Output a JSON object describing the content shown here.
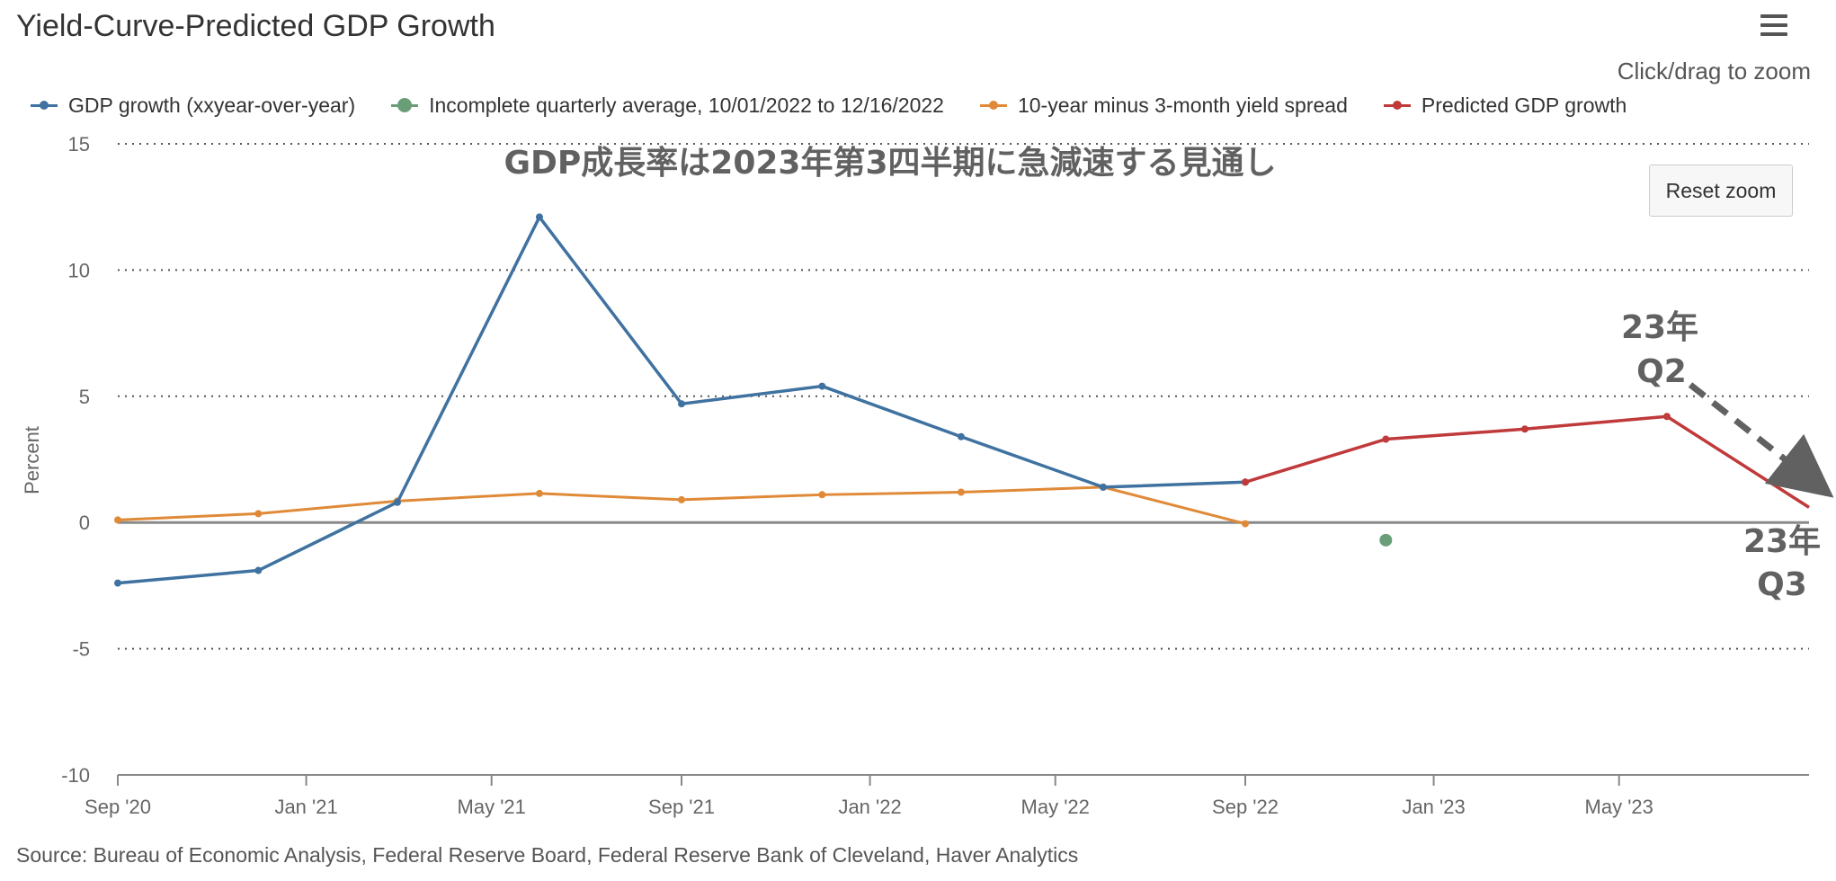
{
  "header": {
    "title": "Yield-Curve-Predicted GDP Growth",
    "menu_icon": "hamburger-menu-icon",
    "zoom_hint": "Click/drag to zoom",
    "reset_zoom_label": "Reset zoom"
  },
  "footer": {
    "source": "Source: Bureau of Economic Analysis, Federal Reserve Board, Federal Reserve Bank of Cleveland, Haver Analytics"
  },
  "annotations": {
    "headline": "GDP成長率は2023年第3四半期に急減速する見通し",
    "q2_line1": "23年",
    "q2_line2": "Q2",
    "q3_line1": "23年",
    "q3_line2": "Q3"
  },
  "colors": {
    "gdp": "#3f72a0",
    "incomplete": "#6a9e78",
    "spread": "#e08a38",
    "predicted": "#c0393b",
    "grid": "#555555",
    "annotation": "#616161"
  },
  "chart_data": {
    "type": "line",
    "title": "Yield-Curve-Predicted GDP Growth",
    "xlabel": "",
    "ylabel": "Percent",
    "ylim": [
      -10,
      15
    ],
    "yticks": [
      -10,
      -5,
      0,
      5,
      10,
      15
    ],
    "x_range": [
      "2020-09-01",
      "2023-09-01"
    ],
    "xtick_labels": [
      "Sep '20",
      "Jan '21",
      "May '21",
      "Sep '21",
      "Jan '22",
      "May '22",
      "Sep '22",
      "Jan '23",
      "May '23"
    ],
    "xtick_dates": [
      "2020-09-01",
      "2021-01-01",
      "2021-05-01",
      "2021-09-01",
      "2022-01-01",
      "2022-05-01",
      "2022-09-01",
      "2023-01-01",
      "2023-05-01"
    ],
    "grid": "dotted horizontal",
    "legend_position": "top-left",
    "series": [
      {
        "name": "GDP growth (xxyear-over-year)",
        "color": "#3f72a0",
        "points": [
          {
            "x": "2020-09-01",
            "y": -2.4
          },
          {
            "x": "2020-12-01",
            "y": -1.9
          },
          {
            "x": "2021-03-01",
            "y": 0.8
          },
          {
            "x": "2021-06-01",
            "y": 12.1
          },
          {
            "x": "2021-09-01",
            "y": 4.7
          },
          {
            "x": "2021-12-01",
            "y": 5.4
          },
          {
            "x": "2022-03-01",
            "y": 3.4
          },
          {
            "x": "2022-06-01",
            "y": 1.4
          },
          {
            "x": "2022-09-01",
            "y": 1.6
          }
        ]
      },
      {
        "name": "Incomplete quarterly average, 10/01/2022 to 12/16/2022",
        "color": "#6a9e78",
        "points": [
          {
            "x": "2022-12-01",
            "y": -0.7
          }
        ]
      },
      {
        "name": "10-year minus 3-month yield spread",
        "color": "#e08a38",
        "points": [
          {
            "x": "2020-09-01",
            "y": 0.1
          },
          {
            "x": "2020-12-01",
            "y": 0.35
          },
          {
            "x": "2021-03-01",
            "y": 0.85
          },
          {
            "x": "2021-06-01",
            "y": 1.15
          },
          {
            "x": "2021-09-01",
            "y": 0.9
          },
          {
            "x": "2021-12-01",
            "y": 1.1
          },
          {
            "x": "2022-03-01",
            "y": 1.2
          },
          {
            "x": "2022-06-01",
            "y": 1.4
          },
          {
            "x": "2022-09-01",
            "y": -0.05
          }
        ]
      },
      {
        "name": "Predicted GDP growth",
        "color": "#c0393b",
        "points": [
          {
            "x": "2022-09-01",
            "y": 1.6
          },
          {
            "x": "2022-12-01",
            "y": 3.3
          },
          {
            "x": "2023-03-01",
            "y": 3.7
          },
          {
            "x": "2023-06-01",
            "y": 4.2
          },
          {
            "x": "2023-09-01",
            "y": 0.6
          }
        ]
      }
    ]
  }
}
